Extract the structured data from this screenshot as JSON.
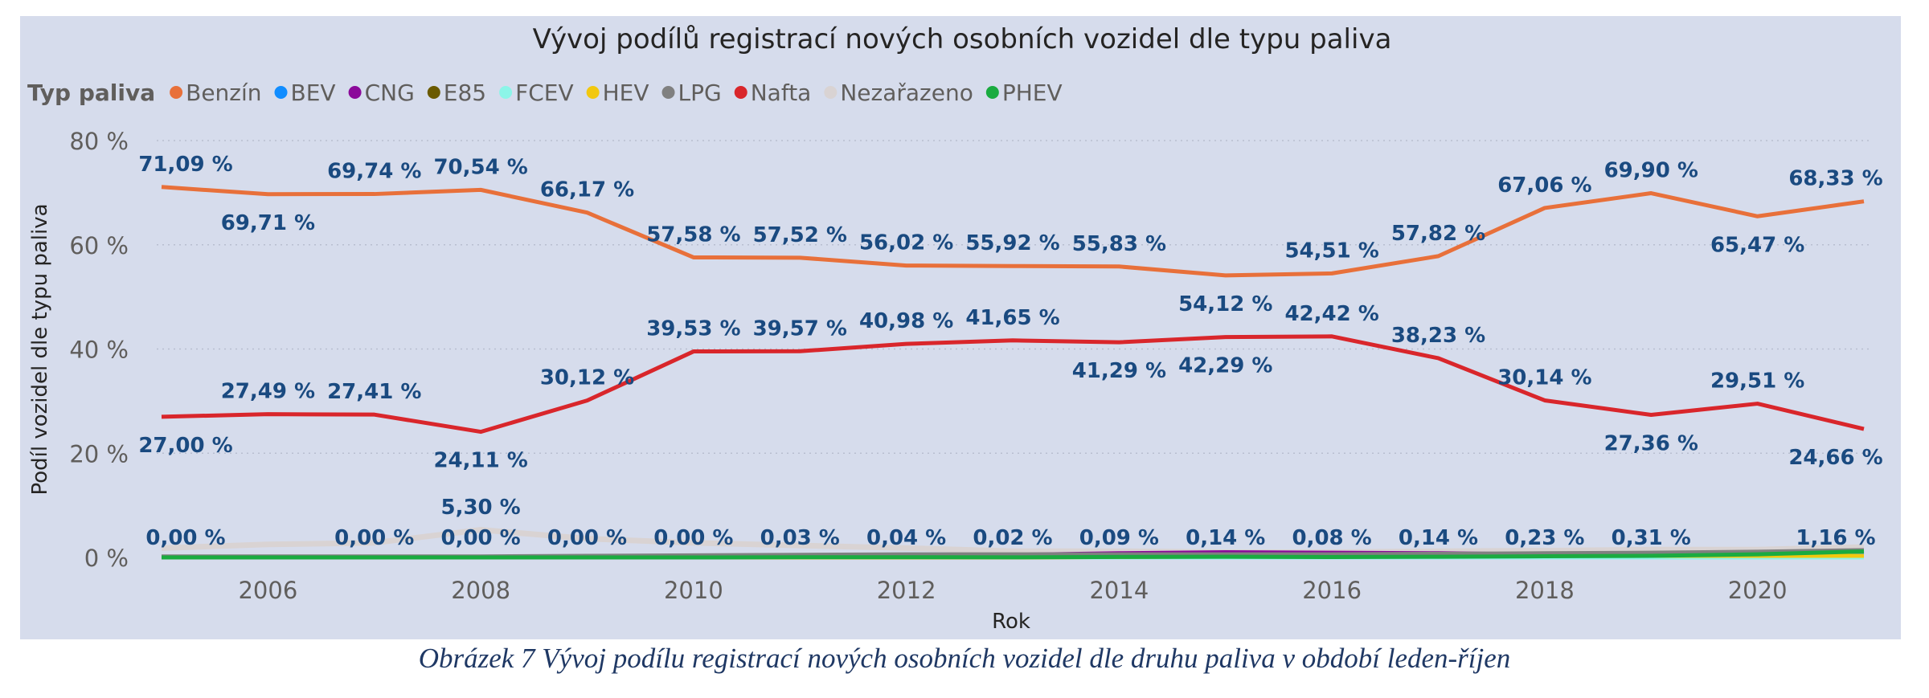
{
  "chart_data": {
    "type": "line",
    "title": "Vývoj podílů registrací nových osobních vozidel dle typu paliva",
    "legend_title": "Typ paliva",
    "legend_position": "top-left",
    "xlabel": "Rok",
    "ylabel": "Podíl vozidel dle typu paliva",
    "x": [
      2005,
      2006,
      2007,
      2008,
      2009,
      2010,
      2011,
      2012,
      2013,
      2014,
      2015,
      2016,
      2017,
      2018,
      2019,
      2020,
      2021
    ],
    "x_ticks": [
      "2006",
      "2008",
      "2010",
      "2012",
      "2014",
      "2016",
      "2018",
      "2020"
    ],
    "y_ticks": [
      "0 %",
      "20 %",
      "40 %",
      "60 %",
      "80 %"
    ],
    "ylim": [
      0,
      80
    ],
    "grid": true,
    "label_color": "#1A4A80",
    "series": [
      {
        "name": "Benzín",
        "color": "#E8703A",
        "values": [
          71.09,
          69.71,
          69.74,
          70.54,
          66.17,
          57.58,
          57.52,
          56.02,
          55.92,
          55.83,
          54.12,
          54.51,
          57.82,
          67.06,
          69.9,
          65.47,
          68.33
        ],
        "labels": [
          "71,09 %",
          "69,71 %",
          "69,74 %",
          "70,54 %",
          "66,17 %",
          "57,58 %",
          "57,52 %",
          "56,02 %",
          "55,92 %",
          "55,83 %",
          "54,12 %",
          "54,51 %",
          "57,82 %",
          "67,06 %",
          "69,90 %",
          "65,47 %",
          "68,33 %"
        ]
      },
      {
        "name": "BEV",
        "color": "#118DFF",
        "values": [
          0,
          0,
          0,
          0,
          0,
          0,
          0,
          0,
          0,
          0.05,
          0.05,
          0.05,
          0.1,
          0.15,
          0.2,
          0.5,
          0.9
        ]
      },
      {
        "name": "CNG",
        "color": "#8B0A9A",
        "values": [
          0,
          0,
          0,
          0,
          0,
          0,
          0.1,
          0.3,
          0.5,
          0.8,
          1.0,
          0.9,
          0.8,
          0.6,
          0.6,
          0.4,
          0.3
        ]
      },
      {
        "name": "E85",
        "color": "#6B5A00",
        "values": [
          0,
          0,
          0,
          0,
          0,
          0.1,
          0.1,
          0.1,
          0.1,
          0.1,
          0,
          0,
          0,
          0,
          0,
          0,
          0
        ]
      },
      {
        "name": "FCEV",
        "color": "#8CF5E8",
        "values": [
          0,
          0,
          0,
          0,
          0,
          0,
          0,
          0,
          0,
          0,
          0,
          0,
          0,
          0,
          0,
          0,
          0
        ]
      },
      {
        "name": "HEV",
        "color": "#F2C80F",
        "values": [
          0,
          0,
          0,
          0,
          0,
          0,
          0,
          0,
          0,
          0.1,
          0.2,
          0.3,
          0.3,
          0.3,
          0.3,
          0.3,
          0.3
        ]
      },
      {
        "name": "LPG",
        "color": "#808080",
        "values": [
          0.2,
          0.2,
          0.2,
          0.2,
          0.3,
          0.4,
          0.5,
          0.6,
          0.6,
          0.6,
          0.6,
          0.6,
          0.7,
          0.8,
          0.9,
          1.1,
          1.4
        ]
      },
      {
        "name": "Nafta",
        "color": "#D9262B",
        "values": [
          27.0,
          27.49,
          27.41,
          24.11,
          30.12,
          39.53,
          39.57,
          40.98,
          41.65,
          41.29,
          42.29,
          42.42,
          38.23,
          30.14,
          27.36,
          29.51,
          24.66
        ],
        "labels": [
          "27,00 %",
          "27,49 %",
          "27,41 %",
          "24,11 %",
          "30,12 %",
          "39,53 %",
          "39,57 %",
          "40,98 %",
          "41,65 %",
          "41,29 %",
          "42,29 %",
          "42,42 %",
          "38,23 %",
          "30,14 %",
          "27,36 %",
          "29,51 %",
          "24,66 %"
        ]
      },
      {
        "name": "Nezařazeno",
        "color": "#D9D3D3",
        "values": [
          1.8,
          2.5,
          2.8,
          5.3,
          3.6,
          2.8,
          2.3,
          1.8,
          1.2,
          1.2,
          1.0,
          1.0,
          1.2,
          1.3,
          1.5,
          1.5,
          2.0
        ],
        "labels": [
          null,
          null,
          null,
          "5,30 %",
          null,
          null,
          null,
          null,
          null,
          null,
          null,
          null,
          null,
          null,
          null,
          null,
          null
        ]
      },
      {
        "name": "PHEV",
        "color": "#1AAB40",
        "values": [
          0.0,
          0.0,
          0.0,
          0.0,
          0.0,
          0.0,
          0.03,
          0.04,
          0.02,
          0.09,
          0.14,
          0.08,
          0.14,
          0.23,
          0.31,
          0.6,
          1.16
        ],
        "labels": [
          "0,00 %",
          null,
          "0,00 %",
          "0,00 %",
          "0,00 %",
          "0,00 %",
          "0,03 %",
          "0,04 %",
          "0,02 %",
          "0,09 %",
          "0,14 %",
          "0,08 %",
          "0,14 %",
          "0,23 %",
          "0,31 %",
          null,
          "1,16 %"
        ]
      }
    ]
  },
  "caption": "Obrázek 7 Vývoj podílu registrací nových osobních vozidel dle druhu paliva v období leden-říjen"
}
